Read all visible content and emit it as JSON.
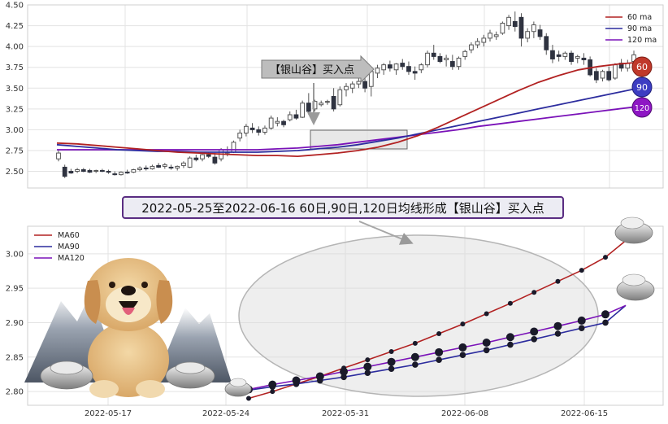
{
  "top_chart": {
    "ma_labels": [
      "60 ma",
      "90 ma",
      "120 ma"
    ],
    "badges": [
      "60",
      "90",
      "120"
    ],
    "signal_label": "【银山谷】买入点",
    "colors": {
      "ma60": "#b22222",
      "ma90": "#2c2c9e",
      "ma120": "#7a12b8",
      "candle_up": "#555555",
      "candle_down": "#2f3340"
    }
  },
  "banner": {
    "text": "2022-05-25至2022-06-16 60日,90日,120日均线形成【银山谷】买入点"
  },
  "bottom_chart": {
    "legend": [
      "MA60",
      "MA90",
      "MA120"
    ],
    "x_tick_labels": [
      "2022-05-17",
      "2022-05-24",
      "2022-05-31",
      "2022-06-08",
      "2022-06-15"
    ]
  },
  "chart_data": [
    {
      "type": "candlestick",
      "ylim": [
        2.3,
        4.5
      ],
      "yticks": [
        2.5,
        2.75,
        3.0,
        3.25,
        3.5,
        3.75,
        4.0,
        4.25,
        4.5
      ],
      "series_names": [
        "60 ma",
        "90 ma",
        "120 ma"
      ],
      "ohlc": [
        [
          2.65,
          2.75,
          2.62,
          2.72
        ],
        [
          2.55,
          2.58,
          2.42,
          2.44
        ],
        [
          2.5,
          2.53,
          2.47,
          2.48
        ],
        [
          2.5,
          2.54,
          2.48,
          2.52
        ],
        [
          2.52,
          2.54,
          2.49,
          2.5
        ],
        [
          2.51,
          2.53,
          2.48,
          2.49
        ],
        [
          2.5,
          2.52,
          2.48,
          2.51
        ],
        [
          2.51,
          2.53,
          2.49,
          2.5
        ],
        [
          2.5,
          2.52,
          2.47,
          2.49
        ],
        [
          2.47,
          2.5,
          2.45,
          2.46
        ],
        [
          2.46,
          2.5,
          2.45,
          2.49
        ],
        [
          2.49,
          2.52,
          2.47,
          2.48
        ],
        [
          2.49,
          2.53,
          2.48,
          2.52
        ],
        [
          2.52,
          2.56,
          2.5,
          2.54
        ],
        [
          2.54,
          2.57,
          2.51,
          2.53
        ],
        [
          2.53,
          2.58,
          2.52,
          2.56
        ],
        [
          2.57,
          2.6,
          2.54,
          2.55
        ],
        [
          2.56,
          2.6,
          2.53,
          2.58
        ],
        [
          2.55,
          2.58,
          2.52,
          2.54
        ],
        [
          2.54,
          2.57,
          2.51,
          2.56
        ],
        [
          2.57,
          2.62,
          2.54,
          2.6
        ],
        [
          2.55,
          2.68,
          2.54,
          2.66
        ],
        [
          2.66,
          2.7,
          2.62,
          2.64
        ],
        [
          2.65,
          2.73,
          2.62,
          2.7
        ],
        [
          2.7,
          2.73,
          2.66,
          2.68
        ],
        [
          2.67,
          2.72,
          2.58,
          2.6
        ],
        [
          2.65,
          2.78,
          2.62,
          2.76
        ],
        [
          2.72,
          2.8,
          2.68,
          2.73
        ],
        [
          2.73,
          2.87,
          2.72,
          2.85
        ],
        [
          2.9,
          3.0,
          2.86,
          2.96
        ],
        [
          2.96,
          3.07,
          2.92,
          3.04
        ],
        [
          3.02,
          3.08,
          2.96,
          3.0
        ],
        [
          3.0,
          3.04,
          2.93,
          2.97
        ],
        [
          2.97,
          3.05,
          2.94,
          3.02
        ],
        [
          3.02,
          3.17,
          3.0,
          3.14
        ],
        [
          3.08,
          3.15,
          3.04,
          3.1
        ],
        [
          3.1,
          3.12,
          3.03,
          3.06
        ],
        [
          3.12,
          3.22,
          3.1,
          3.18
        ],
        [
          3.18,
          3.24,
          3.12,
          3.14
        ],
        [
          3.15,
          3.35,
          3.14,
          3.32
        ],
        [
          3.32,
          3.44,
          3.18,
          3.22
        ],
        [
          3.25,
          3.36,
          3.22,
          3.34
        ],
        [
          3.3,
          3.35,
          3.28,
          3.32
        ],
        [
          3.33,
          3.36,
          3.3,
          3.34
        ],
        [
          3.4,
          3.5,
          3.22,
          3.25
        ],
        [
          3.3,
          3.52,
          3.28,
          3.48
        ],
        [
          3.48,
          3.56,
          3.4,
          3.52
        ],
        [
          3.5,
          3.58,
          3.44,
          3.55
        ],
        [
          3.55,
          3.62,
          3.5,
          3.58
        ],
        [
          3.58,
          3.65,
          3.45,
          3.5
        ],
        [
          3.52,
          3.72,
          3.4,
          3.7
        ],
        [
          3.68,
          3.78,
          3.62,
          3.74
        ],
        [
          3.72,
          3.8,
          3.66,
          3.78
        ],
        [
          3.78,
          3.83,
          3.7,
          3.74
        ],
        [
          3.72,
          3.8,
          3.66,
          3.79
        ],
        [
          3.8,
          3.85,
          3.72,
          3.76
        ],
        [
          3.76,
          3.82,
          3.66,
          3.7
        ],
        [
          3.7,
          3.76,
          3.6,
          3.68
        ],
        [
          3.72,
          3.8,
          3.68,
          3.78
        ],
        [
          3.78,
          3.95,
          3.75,
          3.92
        ],
        [
          3.92,
          4.02,
          3.84,
          3.88
        ],
        [
          3.88,
          3.92,
          3.8,
          3.82
        ],
        [
          3.84,
          3.9,
          3.76,
          3.86
        ],
        [
          3.82,
          3.9,
          3.72,
          3.76
        ],
        [
          3.76,
          3.88,
          3.72,
          3.86
        ],
        [
          3.88,
          3.96,
          3.84,
          3.94
        ],
        [
          3.96,
          4.05,
          3.92,
          4.02
        ],
        [
          4.02,
          4.1,
          3.98,
          4.06
        ],
        [
          4.05,
          4.14,
          4.0,
          4.1
        ],
        [
          4.1,
          4.2,
          4.06,
          4.16
        ],
        [
          4.12,
          4.18,
          4.08,
          4.14
        ],
        [
          4.16,
          4.3,
          4.14,
          4.28
        ],
        [
          4.25,
          4.38,
          4.2,
          4.35
        ],
        [
          4.3,
          4.42,
          4.18,
          4.24
        ],
        [
          4.35,
          4.4,
          4.0,
          4.1
        ],
        [
          4.1,
          4.22,
          4.05,
          4.18
        ],
        [
          4.18,
          4.3,
          4.1,
          4.26
        ],
        [
          4.2,
          4.26,
          4.08,
          4.12
        ],
        [
          4.12,
          4.16,
          3.9,
          3.96
        ],
        [
          3.95,
          4.02,
          3.8,
          3.85
        ],
        [
          3.9,
          3.95,
          3.82,
          3.88
        ],
        [
          3.88,
          3.94,
          3.84,
          3.92
        ],
        [
          3.92,
          3.95,
          3.78,
          3.82
        ],
        [
          3.86,
          3.9,
          3.8,
          3.88
        ],
        [
          3.86,
          3.92,
          3.78,
          3.84
        ],
        [
          3.84,
          3.88,
          3.64,
          3.66
        ],
        [
          3.7,
          3.74,
          3.56,
          3.6
        ],
        [
          3.62,
          3.72,
          3.58,
          3.7
        ],
        [
          3.7,
          3.76,
          3.58,
          3.6
        ],
        [
          3.62,
          3.8,
          3.6,
          3.78
        ],
        [
          3.8,
          3.85,
          3.7,
          3.74
        ],
        [
          3.74,
          3.84,
          3.7,
          3.8
        ],
        [
          3.82,
          3.95,
          3.78,
          3.9
        ]
      ],
      "ma60": [
        2.84,
        2.83,
        2.81,
        2.79,
        2.77,
        2.75,
        2.73,
        2.72,
        2.71,
        2.7,
        2.69,
        2.69,
        2.68,
        2.7,
        2.72,
        2.75,
        2.79,
        2.85,
        2.93,
        3.03,
        3.14,
        3.25,
        3.36,
        3.47,
        3.57,
        3.65,
        3.72,
        3.76,
        3.79,
        3.81
      ],
      "ma90": [
        2.82,
        2.8,
        2.78,
        2.76,
        2.75,
        2.74,
        2.74,
        2.73,
        2.73,
        2.73,
        2.73,
        2.74,
        2.75,
        2.77,
        2.79,
        2.82,
        2.86,
        2.9,
        2.95,
        3.0,
        3.05,
        3.1,
        3.15,
        3.2,
        3.25,
        3.3,
        3.35,
        3.4,
        3.45,
        3.5
      ],
      "ma120": [
        2.76,
        2.76,
        2.76,
        2.76,
        2.76,
        2.76,
        2.76,
        2.76,
        2.76,
        2.76,
        2.76,
        2.77,
        2.78,
        2.8,
        2.82,
        2.85,
        2.88,
        2.91,
        2.94,
        2.97,
        3.0,
        3.04,
        3.07,
        3.1,
        3.13,
        3.16,
        3.19,
        3.22,
        3.25,
        3.28
      ]
    },
    {
      "type": "line",
      "x": [
        "2022-05-25",
        "2022-05-26",
        "2022-05-27",
        "2022-05-30",
        "2022-05-31",
        "2022-06-01",
        "2022-06-02",
        "2022-06-06",
        "2022-06-07",
        "2022-06-08",
        "2022-06-09",
        "2022-06-10",
        "2022-06-13",
        "2022-06-14",
        "2022-06-15",
        "2022-06-16"
      ],
      "ylim": [
        2.78,
        3.04
      ],
      "yticks": [
        2.8,
        2.85,
        2.9,
        2.95,
        3.0
      ],
      "series": [
        {
          "name": "MA60",
          "color": "#b22222",
          "values": [
            2.79,
            2.8,
            2.811,
            2.822,
            2.834,
            2.846,
            2.858,
            2.87,
            2.884,
            2.898,
            2.913,
            2.928,
            2.944,
            2.96,
            2.976,
            2.995
          ]
        },
        {
          "name": "MA90",
          "color": "#2c2c9e",
          "values": [
            2.802,
            2.807,
            2.811,
            2.816,
            2.821,
            2.827,
            2.833,
            2.839,
            2.846,
            2.853,
            2.86,
            2.868,
            2.876,
            2.884,
            2.892,
            2.9
          ]
        },
        {
          "name": "MA120",
          "color": "#7a12b8",
          "values": [
            2.803,
            2.81,
            2.816,
            2.822,
            2.829,
            2.836,
            2.843,
            2.85,
            2.857,
            2.864,
            2.871,
            2.879,
            2.887,
            2.895,
            2.903,
            2.912
          ]
        }
      ]
    }
  ]
}
